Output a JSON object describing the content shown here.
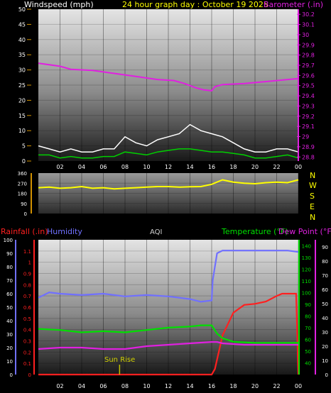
{
  "header": {
    "wind_label": "Windspeed (mph)",
    "title": "24 hour graph day : October 19 2025",
    "baro_label": "Barometer (.in)"
  },
  "bottom_header": {
    "rain_label": "Rainfall (.in)",
    "humidity_label": "Humidity",
    "aqi_label": "AQI",
    "temp_label": "Temperature (°F)",
    "dew_label": "Dew Point (°F)"
  },
  "compass": [
    "N",
    "W",
    "S",
    "E",
    "N"
  ],
  "annotation": "Sun Rise",
  "colors": {
    "wind_title": "#ffffff",
    "title": "#ffff00",
    "barometer": "#e020e0",
    "rain": "#ff2020",
    "humidity": "#7070ff",
    "temperature": "#00e000",
    "dew": "#e020e0",
    "direction": "#ffff00",
    "aqi": "#d0d0d0",
    "axis_text": "#ffffff",
    "tick_orange": "#d09000"
  },
  "chart_data": [
    {
      "type": "line",
      "title": "24 hour graph day : October 19 2025",
      "x_tick_labels": [
        "02",
        "04",
        "06",
        "08",
        "10",
        "12",
        "14",
        "16",
        "18",
        "20",
        "22",
        "00"
      ],
      "y_left": {
        "label": "Windspeed (mph)",
        "ticks": [
          "0",
          "5",
          "10",
          "15",
          "20",
          "25",
          "30",
          "35",
          "40",
          "45",
          "50"
        ],
        "ylim": [
          0,
          50
        ]
      },
      "y_right": {
        "label": "Barometer (.in)",
        "ticks": [
          "28.8",
          "28.9",
          "29",
          "29.1",
          "29.2",
          "29.3",
          "29.4",
          "29.5",
          "29.6",
          "29.7",
          "29.8",
          "29.9",
          "30",
          "30.1",
          "30.2"
        ],
        "ylim": [
          28.76,
          30.25
        ]
      },
      "series": [
        {
          "name": "Barometer (.in)",
          "axis": "right",
          "x": [
            0,
            2,
            3,
            5,
            7,
            9,
            11,
            12.5,
            13.5,
            14.5,
            15.2,
            16,
            16.3,
            17,
            19,
            21,
            23,
            24
          ],
          "y": [
            29.72,
            29.69,
            29.66,
            29.65,
            29.62,
            29.59,
            29.56,
            29.55,
            29.52,
            29.48,
            29.46,
            29.45,
            29.49,
            29.51,
            29.52,
            29.54,
            29.56,
            29.57
          ]
        },
        {
          "axis": "left",
          "x": [
            0,
            1,
            2,
            3,
            4,
            5,
            6,
            7,
            8,
            9,
            10,
            11,
            12,
            13,
            14,
            15,
            16,
            17,
            18,
            19,
            20,
            21,
            22,
            23,
            24
          ],
          "y": [
            5,
            4,
            3,
            4,
            3,
            3,
            4,
            4,
            8,
            6,
            5,
            7,
            8,
            9,
            12,
            10,
            9,
            8,
            6,
            4,
            3,
            3,
            4,
            4,
            3
          ]
        },
        {
          "axis": "left",
          "x": [
            0,
            1,
            2,
            3,
            4,
            5,
            6,
            7,
            8,
            9,
            10,
            11,
            12,
            13,
            14,
            15,
            16,
            17,
            18,
            19,
            20,
            21,
            22,
            23,
            24
          ],
          "y": [
            2,
            2,
            1,
            1.5,
            1,
            1,
            1.5,
            1.5,
            3,
            2.5,
            2,
            3,
            3.5,
            4,
            4,
            3.5,
            3,
            3,
            2.5,
            2,
            1,
            1,
            1.5,
            2,
            1
          ]
        }
      ]
    },
    {
      "type": "line",
      "y_left": {
        "ticks": [
          "0",
          "90",
          "180",
          "270",
          "360"
        ],
        "ylim": [
          0,
          360
        ]
      },
      "y_right": {
        "ticks": [
          "N",
          "W",
          "S",
          "E",
          "N"
        ]
      },
      "series": [
        {
          "axis": "left",
          "x": [
            0,
            1,
            2,
            3,
            4,
            5,
            6,
            7,
            8,
            9,
            10,
            11,
            12,
            13,
            14,
            15,
            16,
            17,
            18,
            19,
            20,
            21,
            22,
            23,
            24
          ],
          "y": [
            230,
            235,
            225,
            230,
            240,
            225,
            230,
            220,
            225,
            230,
            235,
            240,
            240,
            235,
            238,
            240,
            260,
            300,
            280,
            270,
            265,
            275,
            280,
            275,
            300
          ]
        }
      ]
    },
    {
      "type": "line",
      "x_tick_labels": [
        "02",
        "04",
        "06",
        "08",
        "10",
        "12",
        "14",
        "16",
        "18",
        "20",
        "22",
        "00"
      ],
      "y_rain": {
        "label": "Rainfall (.in)",
        "ticks": [
          "0",
          "0.1",
          "0.2",
          "0.3",
          "0.4",
          "0.5",
          "0.6",
          "0.7",
          "0.8",
          "0.9",
          "1",
          "1.1"
        ],
        "ylim": [
          0,
          1.2
        ]
      },
      "y_humidity": {
        "label": "Humidity",
        "ticks": [
          "0",
          "10",
          "20",
          "30",
          "40",
          "50",
          "60",
          "70",
          "80",
          "90",
          "100"
        ],
        "ylim": [
          0,
          100
        ]
      },
      "y_temp": {
        "label": "Temperature (°F)",
        "ticks": [
          "40",
          "50",
          "60",
          "70",
          "80",
          "90",
          "100",
          "110",
          "120",
          "130",
          "140"
        ],
        "ylim": [
          30,
          145
        ]
      },
      "y_dew": {
        "label": "Dew Point (°F)",
        "ticks": [
          "0",
          "10",
          "20",
          "30",
          "40",
          "50",
          "60",
          "70",
          "80",
          "90"
        ],
        "ylim": [
          0,
          95
        ]
      },
      "annotations": [
        {
          "text": "Sun Rise",
          "x": 7.5
        }
      ],
      "series": [
        {
          "name": "Humidity",
          "axis": "humidity",
          "x": [
            0,
            1,
            2,
            4,
            6,
            8,
            10,
            12,
            13,
            14,
            15,
            16,
            16.1,
            16.5,
            17,
            19,
            21,
            23,
            24
          ],
          "y": [
            57,
            61,
            60,
            59,
            60,
            58,
            59,
            58,
            57,
            56,
            54,
            55,
            70,
            90,
            92,
            92,
            92,
            92,
            91
          ]
        },
        {
          "name": "Rainfall (.in)",
          "axis": "rain",
          "x": [
            0,
            16,
            16.3,
            17,
            18,
            19,
            20,
            21,
            22,
            22.5,
            23,
            23.8,
            24
          ],
          "y": [
            0,
            0,
            0.05,
            0.35,
            0.55,
            0.62,
            0.63,
            0.65,
            0.7,
            0.72,
            0.72,
            0.72,
            0
          ]
        },
        {
          "name": "Temperature (°F)",
          "axis": "temp",
          "x": [
            0,
            2,
            4,
            6,
            8,
            10,
            12,
            14,
            15,
            16,
            16.5,
            17,
            18,
            20,
            22,
            24
          ],
          "y": [
            69,
            68,
            66,
            67,
            66,
            68,
            70,
            71,
            72,
            72,
            65,
            61,
            58,
            57,
            57,
            57
          ]
        },
        {
          "name": "Dew Point (°F)",
          "axis": "dew",
          "x": [
            0,
            2,
            4,
            6,
            8,
            10,
            12,
            14,
            16,
            16.5,
            17,
            19,
            21,
            24
          ],
          "y": [
            18,
            19,
            19,
            18,
            18,
            20,
            21,
            22,
            23,
            23,
            22,
            21,
            21,
            21
          ]
        }
      ]
    }
  ]
}
